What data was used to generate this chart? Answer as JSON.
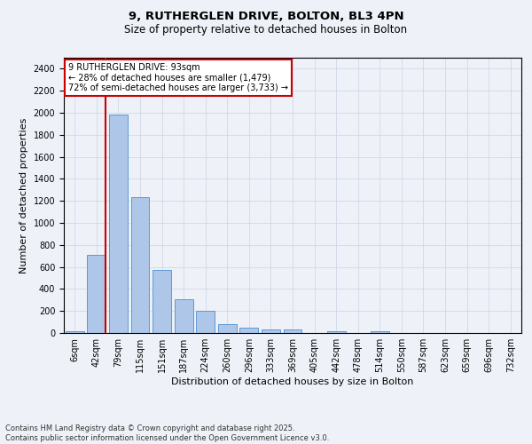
{
  "title1": "9, RUTHERGLEN DRIVE, BOLTON, BL3 4PN",
  "title2": "Size of property relative to detached houses in Bolton",
  "xlabel": "Distribution of detached houses by size in Bolton",
  "ylabel": "Number of detached properties",
  "bar_labels": [
    "6sqm",
    "42sqm",
    "79sqm",
    "115sqm",
    "151sqm",
    "187sqm",
    "224sqm",
    "260sqm",
    "296sqm",
    "333sqm",
    "369sqm",
    "405sqm",
    "442sqm",
    "478sqm",
    "514sqm",
    "550sqm",
    "587sqm",
    "623sqm",
    "659sqm",
    "696sqm",
    "732sqm"
  ],
  "bar_values": [
    20,
    710,
    1980,
    1235,
    570,
    305,
    200,
    80,
    45,
    30,
    30,
    0,
    20,
    0,
    15,
    0,
    0,
    0,
    0,
    0,
    0
  ],
  "bar_color": "#aec6e8",
  "bar_edgecolor": "#5b9bd5",
  "grid_color": "#d0d8e8",
  "background_color": "#eef2f8",
  "vline_x_index": 2,
  "vline_color": "#cc0000",
  "annotation_text": "9 RUTHERGLEN DRIVE: 93sqm\n← 28% of detached houses are smaller (1,479)\n72% of semi-detached houses are larger (3,733) →",
  "annotation_box_color": "#ffffff",
  "annotation_box_edgecolor": "#cc0000",
  "ylim": [
    0,
    2500
  ],
  "yticks": [
    0,
    200,
    400,
    600,
    800,
    1000,
    1200,
    1400,
    1600,
    1800,
    2000,
    2200,
    2400
  ],
  "footnote": "Contains HM Land Registry data © Crown copyright and database right 2025.\nContains public sector information licensed under the Open Government Licence v3.0.",
  "title1_fontsize": 9.5,
  "title2_fontsize": 8.5,
  "xlabel_fontsize": 8,
  "ylabel_fontsize": 8,
  "tick_fontsize": 7,
  "annotation_fontsize": 7,
  "footnote_fontsize": 6
}
